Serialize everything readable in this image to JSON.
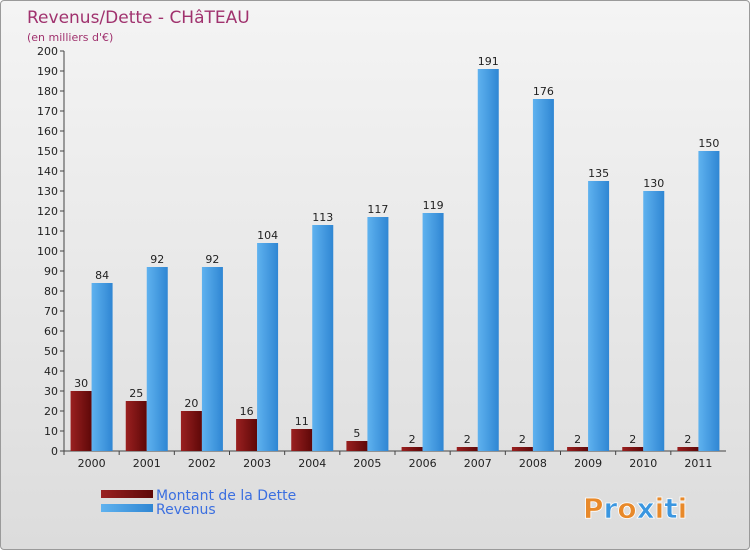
{
  "chart_data": {
    "type": "bar",
    "title": "Revenus/Dette - CHâTEAU",
    "subtitle": "(en milliers d'€)",
    "categories": [
      "2000",
      "2001",
      "2002",
      "2003",
      "2004",
      "2005",
      "2006",
      "2007",
      "2008",
      "2009",
      "2010",
      "2011"
    ],
    "series": [
      {
        "name": "Montant de la Dette",
        "color": "#7a1010",
        "values": [
          30,
          25,
          20,
          16,
          11,
          5,
          2,
          2,
          2,
          2,
          2,
          2
        ]
      },
      {
        "name": "Revenus",
        "color": "#3a96e0",
        "values": [
          84,
          92,
          92,
          104,
          113,
          117,
          119,
          191,
          176,
          135,
          130,
          150
        ]
      }
    ],
    "ylim": [
      0,
      200
    ],
    "ytick_step": 10,
    "grid": false,
    "legend_position": "bottom-left"
  },
  "logo": {
    "text": "Proxiti",
    "colors": [
      "#e8892a",
      "#3a96e0",
      "#e8892a",
      "#3a96e0",
      "#e8892a",
      "#3a96e0",
      "#e8892a"
    ]
  }
}
